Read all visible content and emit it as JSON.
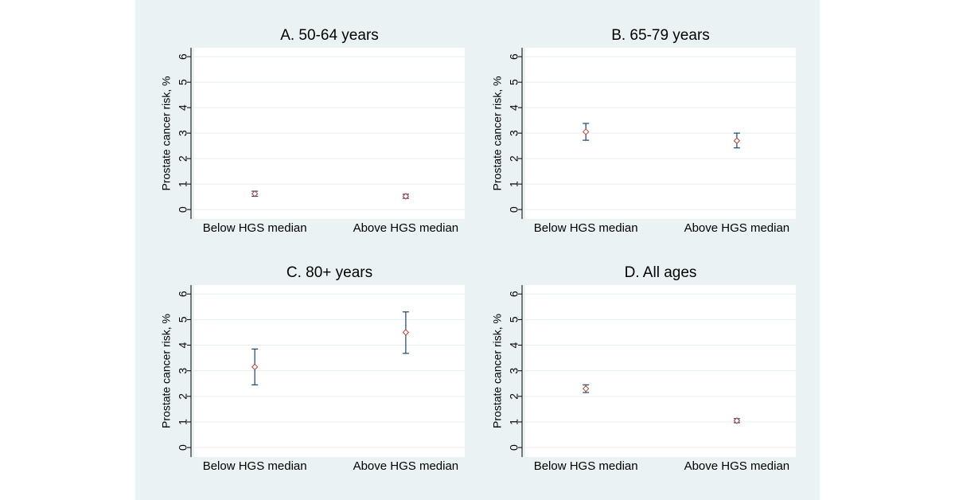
{
  "chart_data": [
    {
      "type": "errorbar",
      "title": "A. 50-64 years",
      "ylabel": "Prostate cancer risk, %",
      "categories": [
        "Below HGS median",
        "Above HGS median"
      ],
      "values": [
        0.62,
        0.52
      ],
      "lower": [
        0.52,
        0.44
      ],
      "upper": [
        0.72,
        0.6
      ],
      "ylim": [
        -0.37,
        6.35
      ],
      "yticks": [
        0,
        1,
        2,
        3,
        4,
        5,
        6
      ],
      "grid": true,
      "color": "#b0413e",
      "errorbar_color": "#1a476f"
    },
    {
      "type": "errorbar",
      "title": "B. 65-79 years",
      "ylabel": "Prostate cancer risk, %",
      "categories": [
        "Below HGS median",
        "Above HGS median"
      ],
      "values": [
        3.05,
        2.7
      ],
      "lower": [
        2.72,
        2.42
      ],
      "upper": [
        3.38,
        3.0
      ],
      "ylim": [
        -0.37,
        6.35
      ],
      "yticks": [
        0,
        1,
        2,
        3,
        4,
        5,
        6
      ],
      "grid": true,
      "color": "#b0413e",
      "errorbar_color": "#1a476f"
    },
    {
      "type": "errorbar",
      "title": "C. 80+ years",
      "ylabel": "Prostate cancer risk, %",
      "categories": [
        "Below HGS median",
        "Above HGS median"
      ],
      "values": [
        3.15,
        4.5
      ],
      "lower": [
        2.45,
        3.68
      ],
      "upper": [
        3.85,
        5.3
      ],
      "ylim": [
        -0.37,
        6.35
      ],
      "yticks": [
        0,
        1,
        2,
        3,
        4,
        5,
        6
      ],
      "grid": true,
      "color": "#b0413e",
      "errorbar_color": "#1a476f"
    },
    {
      "type": "errorbar",
      "title": "D. All ages",
      "ylabel": "Prostate cancer risk, %",
      "categories": [
        "Below HGS median",
        "Above HGS median"
      ],
      "values": [
        2.3,
        1.05
      ],
      "lower": [
        2.15,
        0.97
      ],
      "upper": [
        2.45,
        1.13
      ],
      "ylim": [
        -0.37,
        6.35
      ],
      "yticks": [
        0,
        1,
        2,
        3,
        4,
        5,
        6
      ],
      "grid": true,
      "color": "#b0413e",
      "errorbar_color": "#1a476f"
    }
  ]
}
